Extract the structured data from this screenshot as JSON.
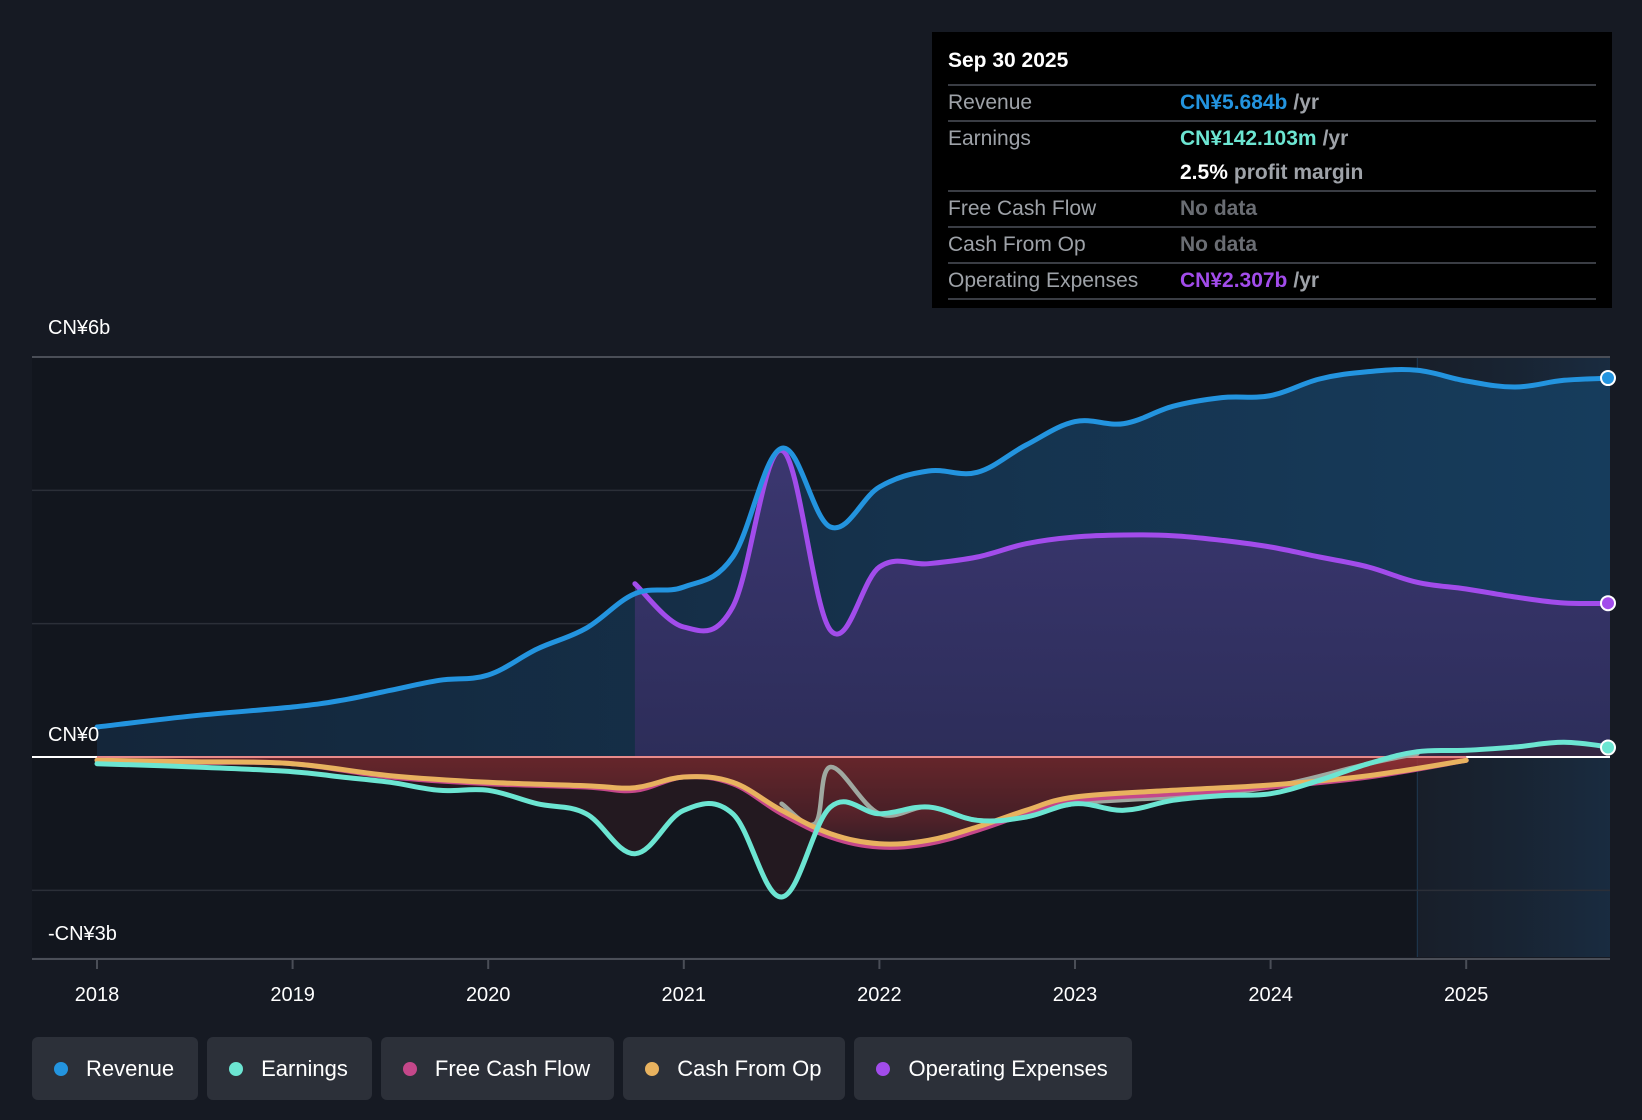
{
  "tooltip": {
    "date": "Sep 30 2025",
    "rows": [
      {
        "label": "Revenue",
        "value": "CN¥5.684b",
        "unit": "/yr",
        "color": "#2394df"
      },
      {
        "label": "Earnings",
        "value": "CN¥142.103m",
        "unit": "/yr",
        "color": "#6ce5d2"
      },
      {
        "label": "",
        "value": "2.5%",
        "unit": "profit margin",
        "color": "#ffffff"
      },
      {
        "label": "Free Cash Flow",
        "value": "No data",
        "unit": "",
        "color": "#6a6d73"
      },
      {
        "label": "Cash From Op",
        "value": "No data",
        "unit": "",
        "color": "#6a6d73"
      },
      {
        "label": "Operating Expenses",
        "value": "CN¥2.307b",
        "unit": "/yr",
        "color": "#a24ceb"
      }
    ]
  },
  "legend": [
    {
      "label": "Revenue",
      "color": "#2394df"
    },
    {
      "label": "Earnings",
      "color": "#6ce5d2"
    },
    {
      "label": "Free Cash Flow",
      "color": "#c5478a"
    },
    {
      "label": "Cash From Op",
      "color": "#e8b25f"
    },
    {
      "label": "Operating Expenses",
      "color": "#a24ceb"
    }
  ],
  "chart_data": {
    "type": "area",
    "title": "",
    "xlabel": "",
    "ylabel": "",
    "y_unit": "CN¥ billions",
    "ylim": [
      -3,
      6
    ],
    "xlim": [
      2018,
      2025.75
    ],
    "y_tick_labels": [
      {
        "value": 6,
        "label": "CN¥6b"
      },
      {
        "value": 0,
        "label": "CN¥0"
      },
      {
        "value": -3,
        "label": "-CN¥3b"
      }
    ],
    "gridlines": [
      6,
      4,
      2,
      0,
      -2
    ],
    "x_ticks": [
      2018,
      2019,
      2020,
      2021,
      2022,
      2023,
      2024,
      2025
    ],
    "x_tick_labels": [
      "2018",
      "2019",
      "2020",
      "2021",
      "2022",
      "2023",
      "2024",
      "2025"
    ],
    "forecast_shade_start": 2024.75,
    "series": [
      {
        "name": "Revenue",
        "color": "#2394df",
        "x": [
          2018.0,
          2018.5,
          2019.0,
          2019.25,
          2019.5,
          2019.75,
          2020.0,
          2020.25,
          2020.5,
          2020.75,
          2021.0,
          2021.25,
          2021.5,
          2021.75,
          2022.0,
          2022.25,
          2022.5,
          2022.75,
          2023.0,
          2023.25,
          2023.5,
          2023.75,
          2024.0,
          2024.25,
          2024.5,
          2024.75,
          2025.0,
          2025.25,
          2025.5,
          2025.75
        ],
        "values": [
          0.45,
          0.62,
          0.75,
          0.85,
          1.0,
          1.15,
          1.23,
          1.62,
          1.93,
          2.45,
          2.55,
          3.0,
          4.63,
          3.45,
          4.05,
          4.29,
          4.27,
          4.68,
          5.03,
          5.0,
          5.26,
          5.39,
          5.42,
          5.67,
          5.78,
          5.8,
          5.64,
          5.55,
          5.65,
          5.684
        ]
      },
      {
        "name": "Operating Expenses",
        "color": "#a24ceb",
        "x": [
          2020.75,
          2021.0,
          2021.25,
          2021.5,
          2021.75,
          2022.0,
          2022.25,
          2022.5,
          2022.75,
          2023.0,
          2023.25,
          2023.5,
          2023.75,
          2024.0,
          2024.25,
          2024.5,
          2024.75,
          2025.0,
          2025.25,
          2025.5,
          2025.75
        ],
        "values": [
          2.6,
          1.95,
          2.25,
          4.6,
          1.9,
          2.85,
          2.9,
          3.0,
          3.2,
          3.3,
          3.33,
          3.32,
          3.25,
          3.15,
          3.0,
          2.85,
          2.62,
          2.52,
          2.4,
          2.31,
          2.307
        ]
      },
      {
        "name": "Earnings",
        "color": "#6ce5d2",
        "x": [
          2018.0,
          2018.5,
          2019.0,
          2019.25,
          2019.5,
          2019.75,
          2020.0,
          2020.25,
          2020.5,
          2020.75,
          2021.0,
          2021.25,
          2021.5,
          2021.75,
          2022.0,
          2022.25,
          2022.5,
          2022.75,
          2023.0,
          2023.25,
          2023.5,
          2023.75,
          2024.0,
          2024.25,
          2024.5,
          2024.75,
          2025.0,
          2025.25,
          2025.5,
          2025.75
        ],
        "values": [
          -0.1,
          -0.15,
          -0.22,
          -0.3,
          -0.38,
          -0.5,
          -0.5,
          -0.7,
          -0.85,
          -1.45,
          -0.8,
          -0.85,
          -2.1,
          -0.75,
          -0.85,
          -0.75,
          -0.95,
          -0.9,
          -0.7,
          -0.8,
          -0.65,
          -0.58,
          -0.55,
          -0.35,
          -0.1,
          0.08,
          0.1,
          0.15,
          0.22,
          0.142
        ]
      },
      {
        "name": "Free Cash Flow",
        "color": "#c5478a",
        "x": [
          2018.0,
          2018.5,
          2019.0,
          2019.5,
          2020.0,
          2020.5,
          2020.75,
          2021.0,
          2021.25,
          2021.5,
          2021.75,
          2022.0,
          2022.25,
          2022.5,
          2022.75,
          2023.0,
          2023.5,
          2024.0,
          2024.5,
          2025.0
        ],
        "values": [
          -0.05,
          -0.08,
          -0.1,
          -0.3,
          -0.4,
          -0.45,
          -0.5,
          -0.3,
          -0.4,
          -0.85,
          -1.2,
          -1.35,
          -1.3,
          -1.1,
          -0.85,
          -0.65,
          -0.55,
          -0.45,
          -0.3,
          -0.05
        ]
      },
      {
        "name": "Cash From Op",
        "color": "#e8b25f",
        "x": [
          2018.0,
          2018.5,
          2019.0,
          2019.5,
          2020.0,
          2020.5,
          2020.75,
          2021.0,
          2021.25,
          2021.5,
          2021.75,
          2022.0,
          2022.25,
          2022.5,
          2022.75,
          2023.0,
          2023.5,
          2024.0,
          2024.5,
          2025.0
        ],
        "values": [
          -0.05,
          -0.07,
          -0.1,
          -0.28,
          -0.38,
          -0.43,
          -0.46,
          -0.3,
          -0.38,
          -0.8,
          -1.15,
          -1.3,
          -1.25,
          -1.05,
          -0.8,
          -0.6,
          -0.5,
          -0.42,
          -0.28,
          -0.05
        ]
      },
      {
        "name": "Cash From Op (hover overlay)",
        "color": "#9fa8a0",
        "x": [
          2021.5,
          2021.67,
          2021.75,
          2022.0,
          2022.25,
          2022.5,
          2022.75,
          2023.0,
          2023.5,
          2024.0,
          2024.5,
          2024.75
        ],
        "values": [
          -0.7,
          -1.0,
          -0.15,
          -0.85,
          -0.75,
          -0.95,
          -0.9,
          -0.7,
          -0.6,
          -0.45,
          -0.1,
          0.05
        ]
      }
    ]
  }
}
